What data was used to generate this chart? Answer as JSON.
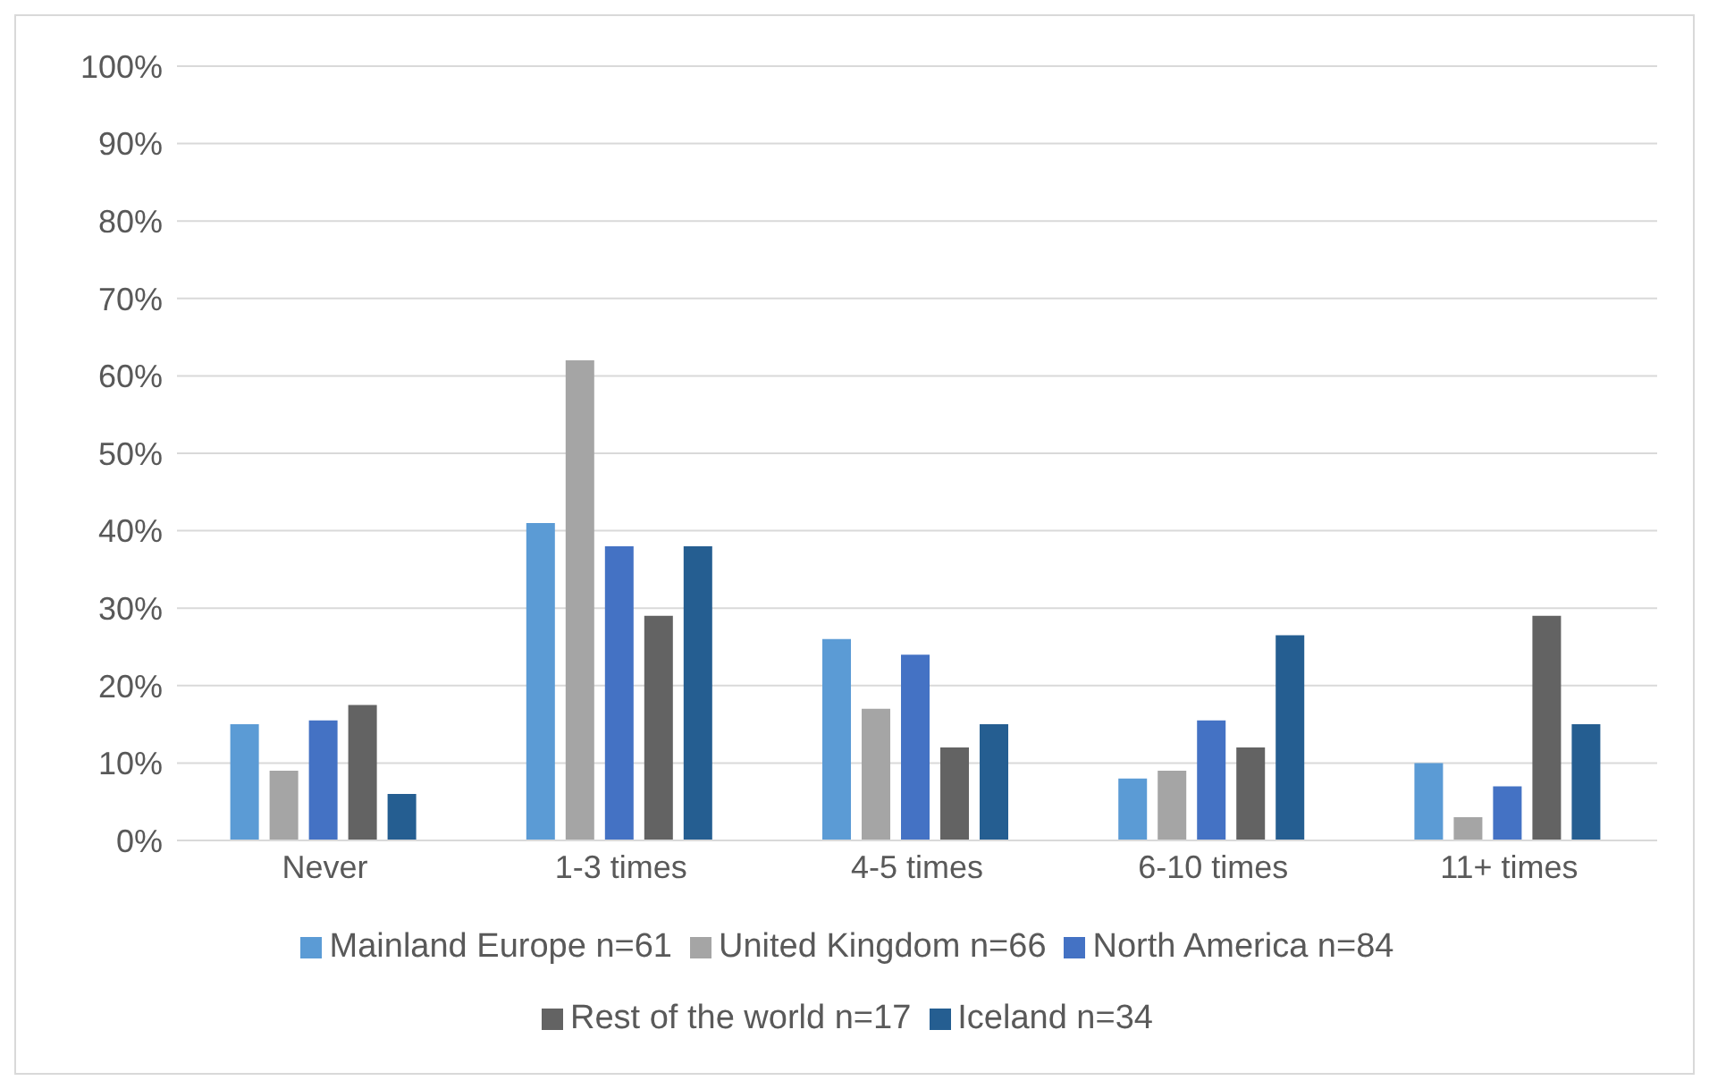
{
  "chart_data": {
    "type": "bar",
    "categories": [
      "Never",
      "1-3 times",
      "4-5 times",
      "6-10 times",
      "11+ times"
    ],
    "series": [
      {
        "name": "Mainland Europe n=61",
        "color": "#5b9bd5",
        "values": [
          15,
          41,
          26,
          8,
          10
        ]
      },
      {
        "name": "United Kingdom n=66",
        "color": "#a5a5a5",
        "values": [
          9,
          62,
          17,
          9,
          3
        ]
      },
      {
        "name": "North America n=84",
        "color": "#4472c4",
        "values": [
          15.5,
          38,
          24,
          15.5,
          7
        ]
      },
      {
        "name": "Rest of the world n=17",
        "color": "#636363",
        "values": [
          17.5,
          29,
          12,
          12,
          29
        ]
      },
      {
        "name": "Iceland n=34",
        "color": "#255e91",
        "values": [
          6,
          38,
          15,
          26.5,
          15
        ]
      }
    ],
    "ylim": [
      0,
      100
    ],
    "yticks": [
      {
        "value": 0,
        "label": "0%"
      },
      {
        "value": 10,
        "label": "10%"
      },
      {
        "value": 20,
        "label": "20%"
      },
      {
        "value": 30,
        "label": "30%"
      },
      {
        "value": 40,
        "label": "40%"
      },
      {
        "value": 50,
        "label": "50%"
      },
      {
        "value": 60,
        "label": "60%"
      },
      {
        "value": 70,
        "label": "70%"
      },
      {
        "value": 80,
        "label": "80%"
      },
      {
        "value": 90,
        "label": "90%"
      },
      {
        "value": 100,
        "label": "100%"
      }
    ],
    "grid": "y",
    "legend": "bottom"
  }
}
